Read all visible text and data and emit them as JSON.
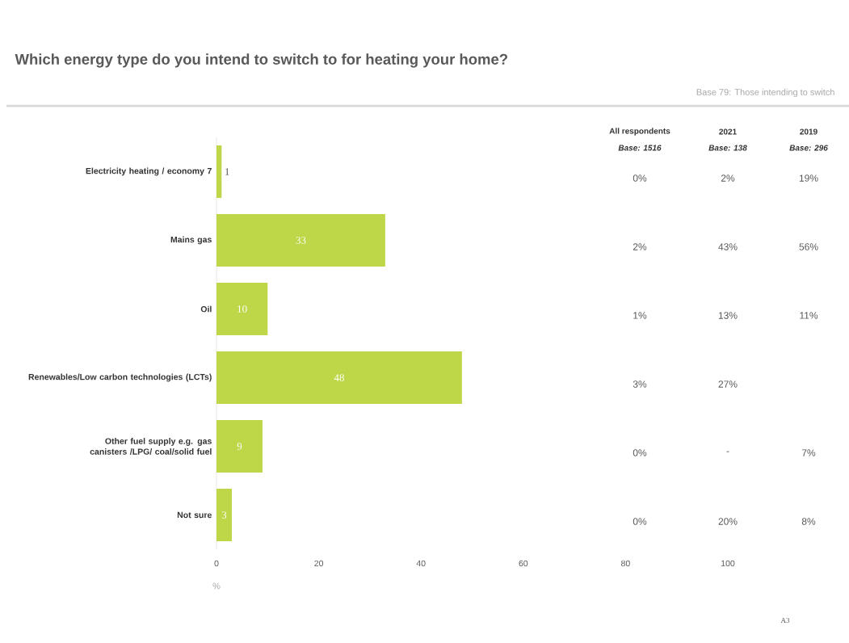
{
  "chart_data": {
    "type": "bar",
    "orientation": "horizontal",
    "title": "Which energy type do you intend to switch to for heating your home?",
    "subtitle": "Base 79: Those intending to switch",
    "categories": [
      "Electricity heating / economy 7",
      "Mains gas",
      "Oil",
      "Renewables/Low carbon technologies (LCTs)",
      "Other fuel supply e.g. gas canisters /LPG/ coal/solid fuel",
      "Not sure"
    ],
    "values": [
      1,
      33,
      10,
      48,
      9,
      3
    ],
    "color": "#bdd748",
    "xlim": [
      0,
      100
    ],
    "xticks": [
      0,
      20,
      40,
      60,
      80,
      100
    ],
    "xlabel": "%",
    "data_labels": true,
    "annotations": [
      "All respondents",
      "Base: 1516",
      "2021",
      "Base: 138",
      "2019",
      "Base: 296",
      "0%",
      "2%",
      "19%",
      "2%",
      "43%",
      "56%",
      "1%",
      "13%",
      "11%",
      "3%",
      "27%",
      "0%",
      "-",
      "7%",
      "0%",
      "20%",
      "8%",
      "A3"
    ]
  }
}
